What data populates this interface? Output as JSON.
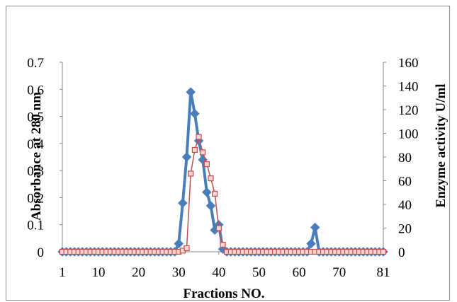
{
  "chart_data": {
    "type": "line",
    "xlabel": "Fractions NO.",
    "ylabel_left": "Absorbance at 280 nm",
    "ylabel_right": "Enzyme activity U/ml",
    "x_ticks": [
      1,
      10,
      20,
      30,
      40,
      50,
      60,
      70,
      81
    ],
    "y_left_ticks": [
      "0",
      "0.1",
      "0.2",
      "0.3",
      "0.4",
      "0.5",
      "0.6",
      "0.7"
    ],
    "y_right_ticks": [
      "0",
      "20",
      "40",
      "60",
      "80",
      "100",
      "120",
      "140",
      "160"
    ],
    "ylim_left": [
      0,
      0.7
    ],
    "ylim_right": [
      0,
      160
    ],
    "xlim": [
      1,
      81
    ],
    "grid": false,
    "series": [
      {
        "axis": "left",
        "color": "#4a7ebb",
        "marker": "diamond",
        "x": [
          1,
          2,
          3,
          4,
          5,
          6,
          7,
          8,
          9,
          10,
          11,
          12,
          13,
          14,
          15,
          16,
          17,
          18,
          19,
          20,
          21,
          22,
          23,
          24,
          25,
          26,
          27,
          28,
          29,
          30,
          31,
          32,
          33,
          34,
          35,
          36,
          37,
          38,
          39,
          40,
          41,
          42,
          43,
          44,
          45,
          46,
          47,
          48,
          49,
          50,
          51,
          52,
          53,
          54,
          55,
          56,
          57,
          58,
          59,
          60,
          61,
          62,
          63,
          64,
          65,
          66,
          67,
          68,
          69,
          70,
          71,
          72,
          73,
          74,
          75,
          76,
          77,
          78,
          79,
          80,
          81
        ],
        "values": [
          0,
          0,
          0,
          0,
          0,
          0,
          0,
          0,
          0,
          0,
          0,
          0,
          0,
          0,
          0,
          0,
          0,
          0,
          0,
          0,
          0,
          0,
          0,
          0,
          0,
          0,
          0,
          0,
          0,
          0.03,
          0.18,
          0.35,
          0.59,
          0.51,
          0.41,
          0.34,
          0.22,
          0.17,
          0.08,
          0.1,
          0.01,
          0,
          0,
          0,
          0,
          0,
          0,
          0,
          0,
          0,
          0,
          0,
          0,
          0,
          0,
          0,
          0,
          0,
          0,
          0,
          0,
          0,
          0.03,
          0.09,
          0,
          0,
          0,
          0,
          0,
          0,
          0,
          0,
          0,
          0,
          0,
          0,
          0,
          0,
          0,
          0,
          0
        ]
      },
      {
        "axis": "right",
        "color": "#c0504d",
        "marker": "square",
        "x": [
          1,
          2,
          3,
          4,
          5,
          6,
          7,
          8,
          9,
          10,
          11,
          12,
          13,
          14,
          15,
          16,
          17,
          18,
          19,
          20,
          21,
          22,
          23,
          24,
          25,
          26,
          27,
          28,
          29,
          30,
          31,
          32,
          33,
          34,
          35,
          36,
          37,
          38,
          39,
          40,
          41,
          42,
          43,
          44,
          45,
          46,
          47,
          48,
          49,
          50,
          51,
          52,
          53,
          54,
          55,
          56,
          57,
          58,
          59,
          60,
          61,
          62,
          63,
          64,
          65,
          66,
          67,
          68,
          69,
          70,
          71,
          72,
          73,
          74,
          75,
          76,
          77,
          78,
          79,
          80,
          81
        ],
        "values": [
          0,
          0,
          0,
          0,
          0,
          0,
          0,
          0,
          0,
          0,
          0,
          0,
          0,
          0,
          0,
          0,
          0,
          0,
          0,
          0,
          0,
          0,
          0,
          0,
          0,
          0,
          0,
          0,
          0,
          0,
          1,
          3,
          66,
          86,
          97,
          84,
          74,
          62,
          49,
          20,
          6,
          0,
          0,
          0,
          0,
          0,
          0,
          0,
          0,
          0,
          0,
          0,
          0,
          0,
          0,
          0,
          0,
          0,
          0,
          0,
          0,
          0,
          0,
          0,
          0,
          0,
          0,
          0,
          0,
          0,
          0,
          0,
          0,
          0,
          0,
          0,
          0,
          0,
          0,
          0,
          0
        ]
      }
    ]
  }
}
